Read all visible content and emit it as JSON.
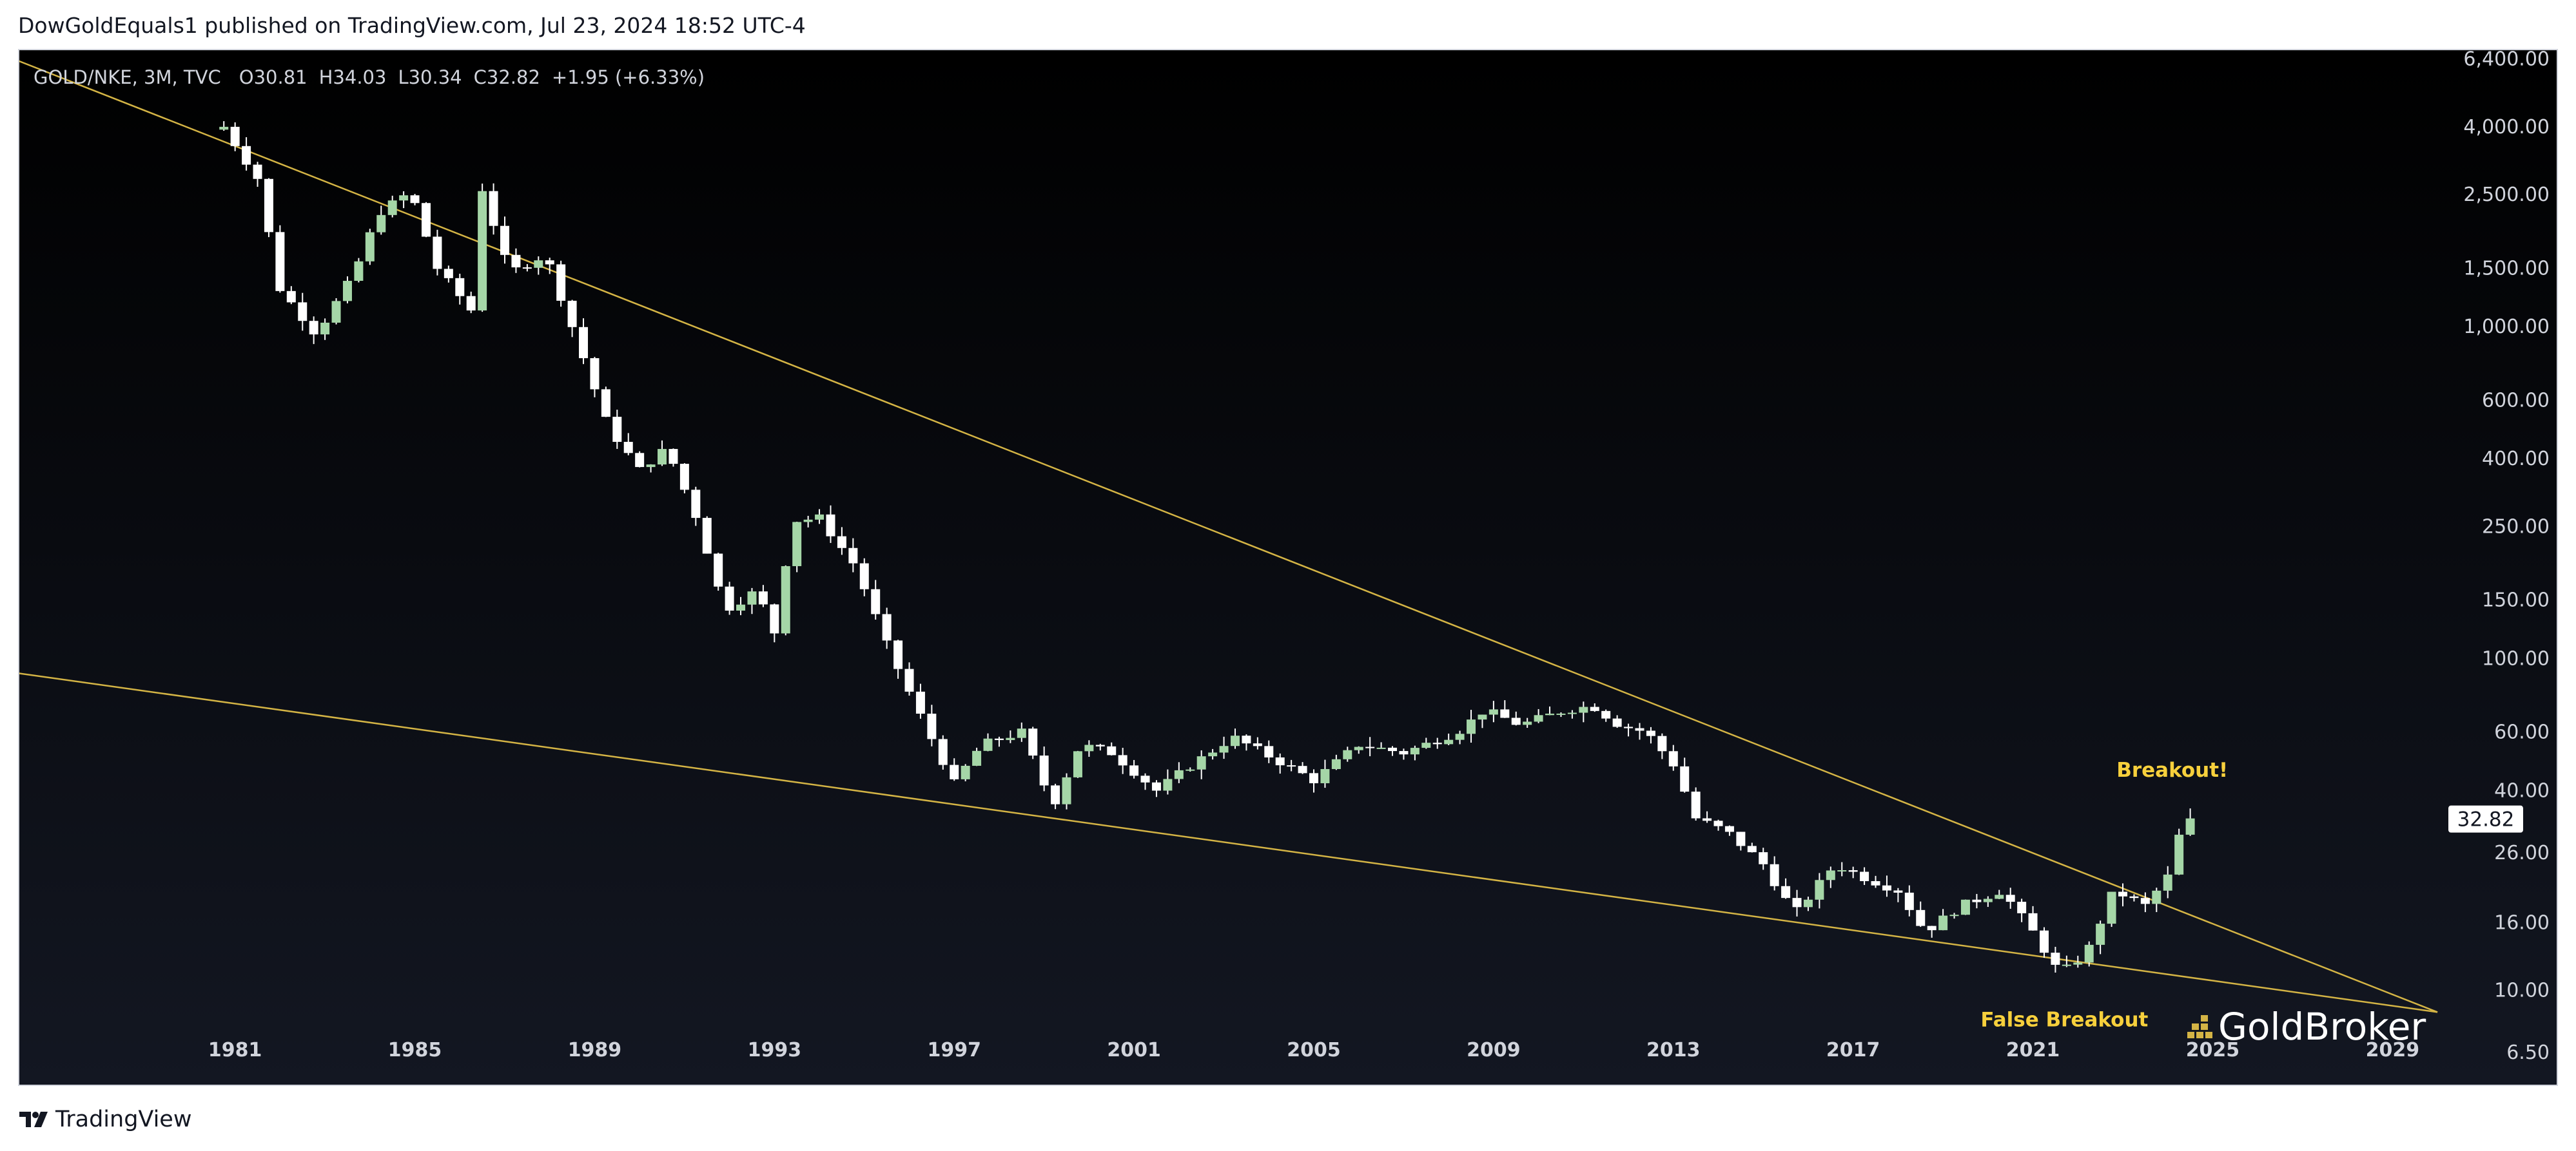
{
  "header": {
    "publisher": "DowGoldEquals1 published on TradingView.com, Jul 23, 2024 18:52 UTC-4"
  },
  "footer": {
    "brand": "TradingView",
    "watermark": "GoldBroker"
  },
  "colors": {
    "background": "#0b0d11",
    "candle_up": "#a5d6a7",
    "candle_down": "#ffffff",
    "trendline": "#d4b445",
    "annotation": "#f7d03c",
    "axis_text": "#d1d4dc",
    "price_label_bg": "#ffffff",
    "price_label_text": "#131722"
  },
  "chart_data": {
    "type": "candlestick",
    "legend": {
      "symbol": "GOLD/NKE, 3M, TVC",
      "open": "O30.81",
      "high": "H34.03",
      "low": "L30.34",
      "close": "C32.82",
      "change": "+1.95 (+6.33%)"
    },
    "x_axis": {
      "range": [
        1976.2,
        2030.2
      ],
      "ticks": [
        "1981",
        "1985",
        "1989",
        "1993",
        "1997",
        "2001",
        "2005",
        "2009",
        "2013",
        "2017",
        "2021",
        "2025",
        "2029"
      ]
    },
    "y_axis": {
      "scale": "log",
      "range": [
        5.2,
        6800
      ],
      "ticks": [
        {
          "value": 6400,
          "label": "6,400.00"
        },
        {
          "value": 4000,
          "label": "4,000.00"
        },
        {
          "value": 2500,
          "label": "2,500.00"
        },
        {
          "value": 1500,
          "label": "1,500.00"
        },
        {
          "value": 1000,
          "label": "1,000.00"
        },
        {
          "value": 600,
          "label": "600.00"
        },
        {
          "value": 400,
          "label": "400.00"
        },
        {
          "value": 250,
          "label": "250.00"
        },
        {
          "value": 150,
          "label": "150.00"
        },
        {
          "value": 100,
          "label": "100.00"
        },
        {
          "value": 60,
          "label": "60.00"
        },
        {
          "value": 40,
          "label": "40.00"
        },
        {
          "value": 26,
          "label": "26.00"
        },
        {
          "value": 16,
          "label": "16.00"
        },
        {
          "value": 10,
          "label": "10.00"
        },
        {
          "value": 6.5,
          "label": "6.50"
        }
      ]
    },
    "current_price": {
      "value": 32.82,
      "label": "32.82"
    },
    "trendlines": [
      {
        "name": "upper",
        "points": [
          [
            1975.0,
            7300
          ],
          [
            2030.0,
            8.6
          ]
        ]
      },
      {
        "name": "lower",
        "points": [
          [
            1975.0,
            95
          ],
          [
            2030.0,
            8.6
          ]
        ]
      }
    ],
    "annotations": [
      {
        "text": "Breakout!",
        "x": 2024.1,
        "y": 44
      },
      {
        "text": "False Breakout",
        "x": 2021.7,
        "y": 7.8
      }
    ],
    "anchors": [
      [
        1980.75,
        4000
      ],
      [
        1981.5,
        2800
      ],
      [
        1982.0,
        1300
      ],
      [
        1982.8,
        950
      ],
      [
        1983.6,
        1400
      ],
      [
        1984.2,
        2200
      ],
      [
        1984.9,
        2550
      ],
      [
        1985.5,
        1500
      ],
      [
        1986.3,
        1100
      ],
      [
        1986.5,
        2600
      ],
      [
        1987.1,
        1450
      ],
      [
        1987.9,
        1650
      ],
      [
        1988.5,
        1000
      ],
      [
        1989.3,
        500
      ],
      [
        1990.0,
        370
      ],
      [
        1990.6,
        430
      ],
      [
        1991.3,
        260
      ],
      [
        1991.9,
        140
      ],
      [
        1992.6,
        160
      ],
      [
        1993.0,
        120
      ],
      [
        1993.4,
        260
      ],
      [
        1994.0,
        265
      ],
      [
        1994.8,
        190
      ],
      [
        1995.5,
        110
      ],
      [
        1996.3,
        65
      ],
      [
        1997.0,
        42
      ],
      [
        1997.6,
        55
      ],
      [
        1998.5,
        60
      ],
      [
        1999.2,
        36
      ],
      [
        1999.8,
        55
      ],
      [
        2000.5,
        52
      ],
      [
        2001.5,
        40
      ],
      [
        2002.3,
        48
      ],
      [
        2003.2,
        58
      ],
      [
        2004.1,
        50
      ],
      [
        2005.0,
        43
      ],
      [
        2006.0,
        55
      ],
      [
        2007.0,
        52
      ],
      [
        2008.2,
        60
      ],
      [
        2008.8,
        70
      ],
      [
        2009.6,
        63
      ],
      [
        2010.6,
        70
      ],
      [
        2011.2,
        72
      ],
      [
        2011.8,
        63
      ],
      [
        2012.4,
        60
      ],
      [
        2013.0,
        48
      ],
      [
        2013.5,
        33
      ],
      [
        2014.2,
        30
      ],
      [
        2015.0,
        24
      ],
      [
        2015.7,
        17
      ],
      [
        2016.6,
        24
      ],
      [
        2017.2,
        22
      ],
      [
        2018.0,
        20
      ],
      [
        2018.6,
        15
      ],
      [
        2019.4,
        18
      ],
      [
        2020.3,
        20
      ],
      [
        2021.0,
        15
      ],
      [
        2021.6,
        11.2
      ],
      [
        2022.2,
        13
      ],
      [
        2022.8,
        20
      ],
      [
        2023.5,
        18
      ],
      [
        2024.0,
        22
      ],
      [
        2024.3,
        30.8
      ],
      [
        2024.55,
        32.82
      ]
    ]
  }
}
